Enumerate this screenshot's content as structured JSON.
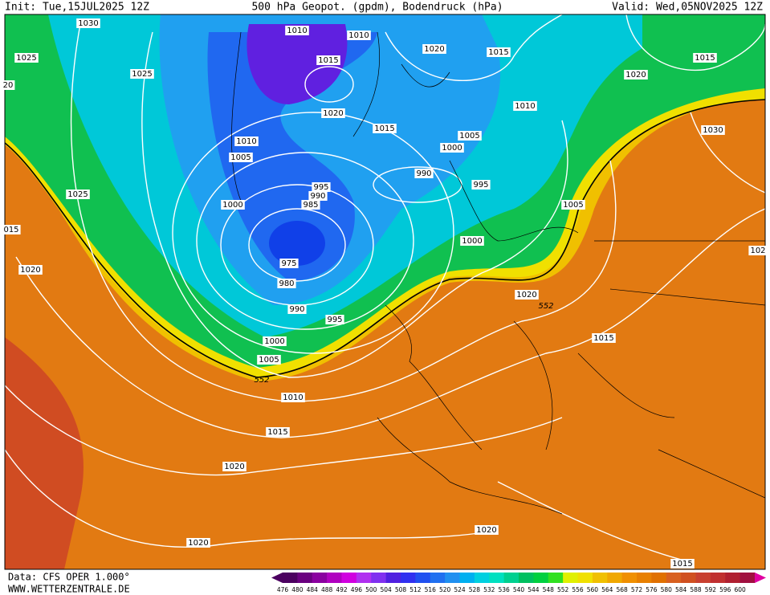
{
  "header": {
    "init": "Init: Tue,15JUL2025 12Z",
    "title": "500 hPa Geopot. (gpdm), Bodendruck (hPa)",
    "valid": "Valid: Wed,05NOV2025 12Z"
  },
  "footer": {
    "source": "Data: CFS OPER 1.000°",
    "website": "WWW.WETTERZENTRALE.DE"
  },
  "isobar_labels": [
    "1030",
    "1025",
    "1025",
    "20",
    "1010",
    "1010",
    "1015",
    "1020",
    "1015",
    "1015",
    "1020",
    "1010",
    "1020",
    "1015",
    "1005",
    "1000",
    "1010",
    "1005",
    "1030",
    "990",
    "995",
    "995",
    "990",
    "985",
    "1000",
    "1025",
    "015",
    "1005",
    "1000",
    "102",
    "1020",
    "975",
    "980",
    "1020",
    "552",
    "990",
    "995",
    "1000",
    "1015",
    "1005",
    "552",
    "1010",
    "1015",
    "1020",
    "1020",
    "1020",
    "1015"
  ],
  "legend": {
    "labels": [
      476,
      480,
      484,
      488,
      492,
      496,
      500,
      504,
      508,
      512,
      516,
      520,
      524,
      528,
      532,
      536,
      540,
      544,
      548,
      552,
      556,
      560,
      564,
      568,
      572,
      576,
      580,
      584,
      588,
      592,
      596,
      600
    ],
    "colors": [
      "#4b0060",
      "#6a0080",
      "#8a00a0",
      "#b000c0",
      "#d000e0",
      "#b030f0",
      "#8030f0",
      "#5020e0",
      "#3030f0",
      "#2050f0",
      "#2070f0",
      "#2090f0",
      "#00b0f0",
      "#00d0e0",
      "#00e0c0",
      "#00d090",
      "#00c060",
      "#00d040",
      "#30e020",
      "#e0f000",
      "#f0e000",
      "#f0c000",
      "#f0a800",
      "#f09000",
      "#e88000",
      "#e07000",
      "#d86020",
      "#d05020",
      "#c84030",
      "#c03030",
      "#b02030",
      "#a01040"
    ]
  }
}
